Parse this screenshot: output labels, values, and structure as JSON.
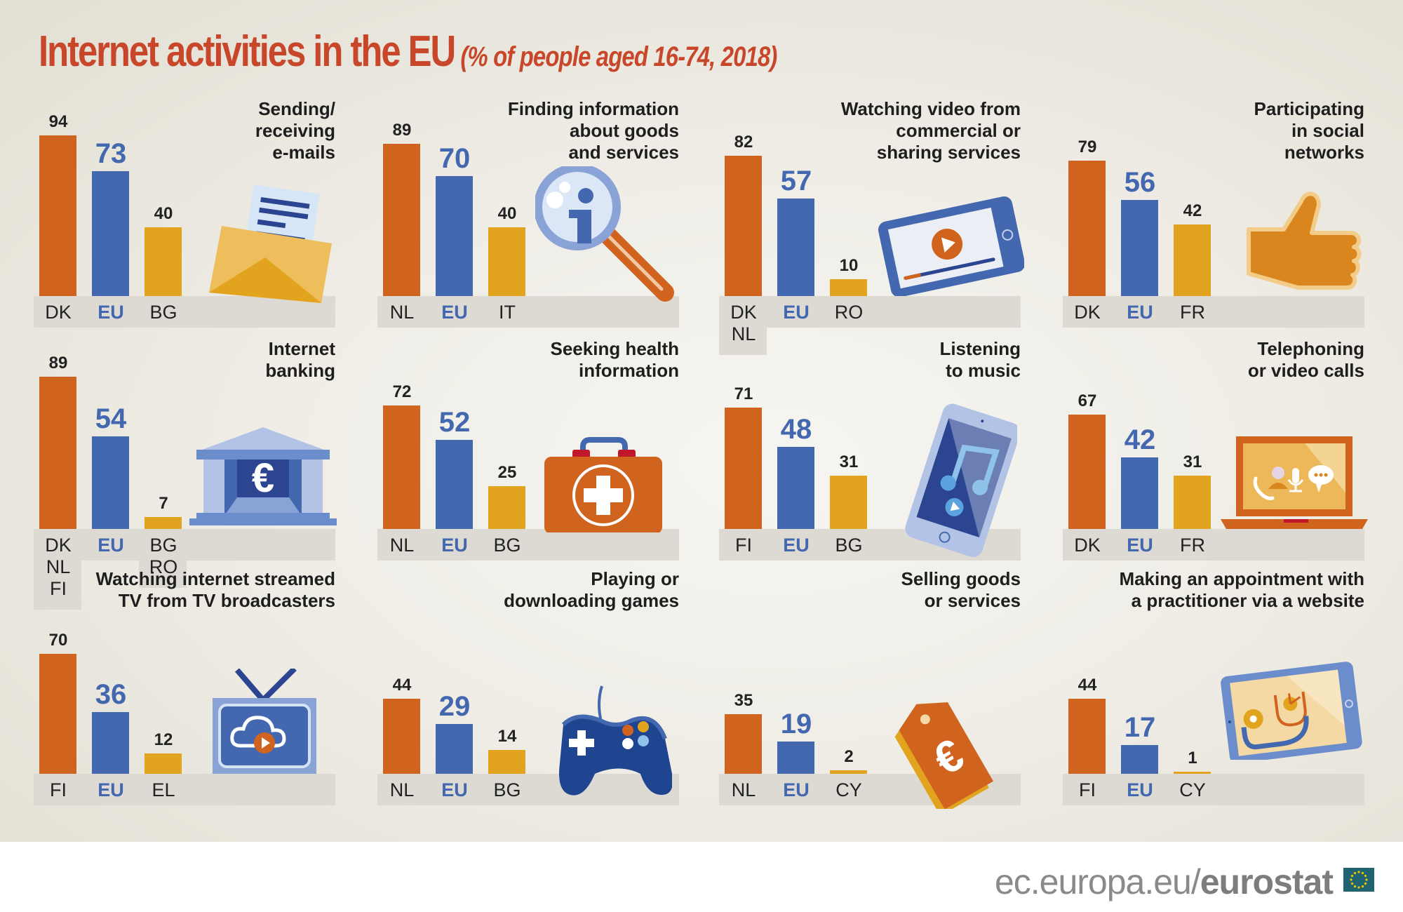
{
  "title": {
    "main": "Internet activities in the EU",
    "subtitle": "(% of people aged 16-74, 2018)"
  },
  "colors": {
    "highest": "#d0631d",
    "eu": "#4468b0",
    "lowest": "#e2a41e",
    "title": "#c8472a"
  },
  "footer": {
    "domain": "ec.europa.eu/",
    "brand": "eurostat",
    "logo_icon": "eu-flag-icon"
  },
  "chart_data": [
    {
      "type": "bar",
      "title": "Sending/\nreceiving\ne-mails",
      "icon": "envelope-icon",
      "categories": [
        "DK",
        "EU",
        "BG"
      ],
      "values": [
        94,
        73,
        40
      ]
    },
    {
      "type": "bar",
      "title": "Finding information\nabout goods\nand services",
      "icon": "magnifier-info-icon",
      "categories": [
        "NL",
        "EU",
        "IT"
      ],
      "values": [
        89,
        70,
        40
      ]
    },
    {
      "type": "bar",
      "title": "Watching video from\ncommercial or\nsharing services",
      "icon": "tablet-video-icon",
      "categories": [
        "DK\nNL",
        "EU",
        "RO"
      ],
      "values": [
        82,
        57,
        10
      ]
    },
    {
      "type": "bar",
      "title": "Participating\nin social\nnetworks",
      "icon": "thumbs-up-icon",
      "categories": [
        "DK",
        "EU",
        "FR"
      ],
      "values": [
        79,
        56,
        42
      ]
    },
    {
      "type": "bar",
      "title": "Internet\nbanking",
      "icon": "bank-euro-icon",
      "categories": [
        "DK\nNL\nFI",
        "EU",
        "BG\nRO"
      ],
      "values": [
        89,
        54,
        7
      ]
    },
    {
      "type": "bar",
      "title": "Seeking health\ninformation",
      "icon": "first-aid-kit-icon",
      "categories": [
        "NL",
        "EU",
        "BG"
      ],
      "values": [
        72,
        52,
        25
      ]
    },
    {
      "type": "bar",
      "title": "Listening\nto music",
      "icon": "phone-music-icon",
      "categories": [
        "FI",
        "EU",
        "BG"
      ],
      "values": [
        71,
        48,
        31
      ]
    },
    {
      "type": "bar",
      "title": "Telephoning\nor video calls",
      "icon": "laptop-call-icon",
      "categories": [
        "DK",
        "EU",
        "FR"
      ],
      "values": [
        67,
        42,
        31
      ]
    },
    {
      "type": "bar",
      "title": "Watching internet streamed\nTV from TV broadcasters",
      "icon": "tv-cloud-icon",
      "categories": [
        "FI",
        "EU",
        "EL"
      ],
      "values": [
        70,
        36,
        12
      ]
    },
    {
      "type": "bar",
      "title": "Playing or\ndownloading games",
      "icon": "gamepad-icon",
      "categories": [
        "NL",
        "EU",
        "BG"
      ],
      "values": [
        44,
        29,
        14
      ]
    },
    {
      "type": "bar",
      "title": "Selling goods\nor services",
      "icon": "price-tag-euro-icon",
      "categories": [
        "NL",
        "EU",
        "CY"
      ],
      "values": [
        35,
        19,
        2
      ]
    },
    {
      "type": "bar",
      "title": "Making an appointment with\na practitioner via a website",
      "icon": "tablet-stethoscope-icon",
      "categories": [
        "FI",
        "EU",
        "CY"
      ],
      "values": [
        44,
        17,
        1
      ]
    }
  ]
}
